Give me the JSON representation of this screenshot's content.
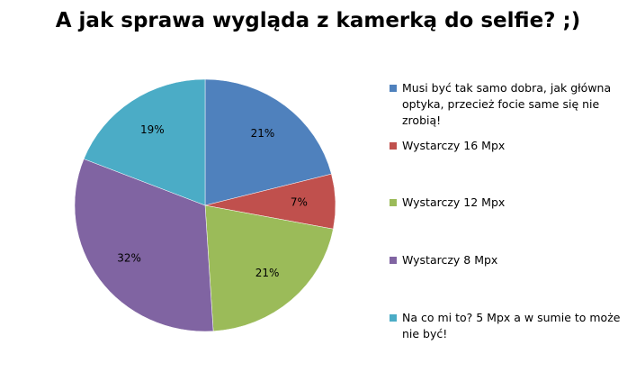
{
  "chart_data": {
    "type": "pie",
    "title": "A jak sprawa wygląda z kamerką do selfie? ;)",
    "categories": [
      "Musi być tak samo dobra, jak główna optyka, przecież focie same się nie zrobią!",
      "Wystarczy 16 Mpx",
      "Wystarczy 12 Mpx",
      "Wystarczy 8 Mpx",
      "Na co mi to? 5 Mpx a w sumie to może nie być!"
    ],
    "values": [
      21,
      7,
      21,
      32,
      19
    ],
    "value_labels": [
      "21%",
      "7%",
      "21%",
      "32%",
      "19%"
    ],
    "colors": [
      "#4f81bd",
      "#c0504d",
      "#9bbb59",
      "#8064a2",
      "#4bacc6"
    ],
    "legend": "right"
  }
}
